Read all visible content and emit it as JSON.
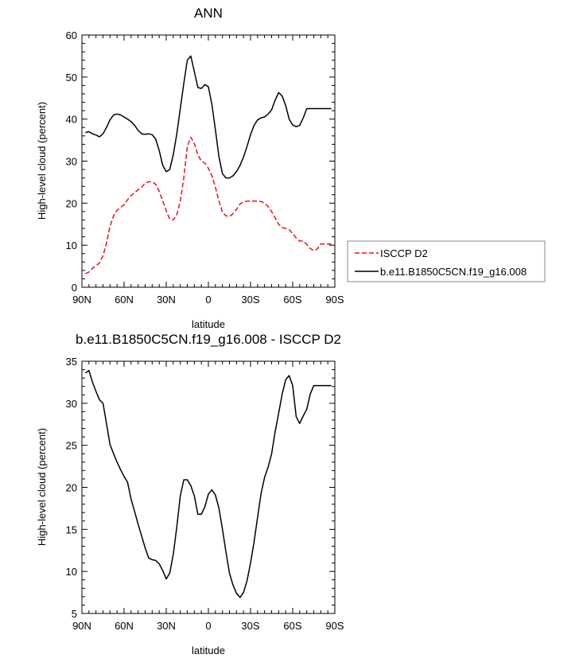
{
  "chart_data": [
    {
      "type": "line",
      "title": "ANN",
      "xlabel": "latitude",
      "ylabel": "High-level cloud (percent)",
      "xlim": [
        90,
        -90
      ],
      "ylim": [
        0,
        60
      ],
      "x_ticks": [
        90,
        60,
        30,
        0,
        -30,
        -60,
        -90
      ],
      "x_tick_labels": [
        "90N",
        "60N",
        "30N",
        "0",
        "30S",
        "60S",
        "90S"
      ],
      "y_ticks": [
        0,
        10,
        20,
        30,
        40,
        50,
        60
      ],
      "y_tick_labels": [
        "0",
        "10",
        "20",
        "30",
        "40",
        "50",
        "60"
      ],
      "legend_position": "right",
      "series": [
        {
          "name": "ISCCP D2",
          "color": "#e8101e",
          "style": "dashed",
          "x": [
            87.5,
            85,
            82.5,
            80,
            77.5,
            75,
            72.5,
            70,
            67.5,
            65,
            62.5,
            60,
            57.5,
            55,
            52.5,
            50,
            47.5,
            45,
            42.5,
            40,
            37.5,
            35,
            32.5,
            30,
            27.5,
            25,
            22.5,
            20,
            17.5,
            15,
            12.5,
            10,
            7.5,
            5,
            2.5,
            0,
            -2.5,
            -5,
            -7.5,
            -10,
            -12.5,
            -15,
            -17.5,
            -20,
            -22.5,
            -25,
            -27.5,
            -30,
            -32.5,
            -35,
            -37.5,
            -40,
            -42.5,
            -45,
            -47.5,
            -50,
            -52.5,
            -55,
            -57.5,
            -60,
            -62.5,
            -65,
            -67.5,
            -70,
            -72.5,
            -75,
            -77.5,
            -80,
            -82.5,
            -85,
            -87.5
          ],
          "values": [
            3.2,
            3.6,
            4.5,
            5.1,
            5.8,
            7.5,
            10.5,
            14.5,
            17,
            18.3,
            19,
            19.6,
            20.8,
            21.8,
            22.5,
            23.2,
            23.8,
            24.8,
            25.1,
            25.1,
            24.5,
            22.8,
            20.5,
            18.2,
            16.2,
            16,
            17.2,
            20.5,
            26,
            33.5,
            35.7,
            34.2,
            31.5,
            30,
            29.5,
            28.3,
            26.5,
            23.8,
            20.5,
            17.8,
            17,
            16.8,
            17.5,
            18.5,
            19.8,
            20.3,
            20.5,
            20.5,
            20.5,
            20.5,
            20.4,
            20,
            19.2,
            18,
            16.5,
            15,
            14.2,
            14,
            13.7,
            12.8,
            11.7,
            11,
            11,
            10.2,
            9.2,
            8.7,
            9.1,
            10.3,
            10.3,
            10.3,
            10.3
          ]
        },
        {
          "name": "b.e11.B1850C5CN.f19_g16.008",
          "color": "#000000",
          "style": "solid",
          "x": [
            87.5,
            85,
            82.5,
            80,
            77.5,
            75,
            72.5,
            70,
            67.5,
            65,
            62.5,
            60,
            57.5,
            55,
            52.5,
            50,
            47.5,
            45,
            42.5,
            40,
            37.5,
            35,
            32.5,
            30,
            27.5,
            25,
            22.5,
            20,
            17.5,
            15,
            12.5,
            10,
            7.5,
            5,
            2.5,
            0,
            -2.5,
            -5,
            -7.5,
            -10,
            -12.5,
            -15,
            -17.5,
            -20,
            -22.5,
            -25,
            -27.5,
            -30,
            -32.5,
            -35,
            -37.5,
            -40,
            -42.5,
            -45,
            -47.5,
            -50,
            -52.5,
            -55,
            -57.5,
            -60,
            -62.5,
            -65,
            -67.5,
            -70,
            -72.5,
            -75,
            -77.5,
            -80,
            -82.5,
            -85,
            -87.5
          ],
          "values": [
            36.8,
            37,
            36.5,
            36.2,
            35.8,
            36.5,
            38,
            39.8,
            41,
            41.2,
            41,
            40.5,
            40,
            39.4,
            38.5,
            37.3,
            36.5,
            36.4,
            36.5,
            36.3,
            35.2,
            32.5,
            29,
            27.5,
            28,
            31.5,
            36.5,
            42.5,
            48.5,
            54,
            55,
            51.3,
            47.5,
            47.3,
            48.2,
            47.7,
            43.5,
            37.5,
            31,
            27,
            26,
            26,
            26.5,
            27.5,
            29,
            31,
            33.5,
            36.3,
            38.5,
            39.8,
            40.3,
            40.5,
            41.2,
            42.2,
            44.5,
            46.3,
            45.5,
            43.2,
            40,
            38.6,
            38.2,
            38.5,
            40.3,
            42.5,
            42.5,
            42.5,
            42.5,
            42.5,
            42.5,
            42.5,
            42.5
          ]
        }
      ]
    },
    {
      "type": "line",
      "title": "b.e11.B1850C5CN.f19_g16.008 - ISCCP D2",
      "xlabel": "latitude",
      "ylabel": "High-level cloud (percent)",
      "xlim": [
        90,
        -90
      ],
      "ylim": [
        5,
        35
      ],
      "x_ticks": [
        90,
        60,
        30,
        0,
        -30,
        -60,
        -90
      ],
      "x_tick_labels": [
        "90N",
        "60N",
        "30N",
        "0",
        "30S",
        "60S",
        "90S"
      ],
      "y_ticks": [
        5,
        10,
        15,
        20,
        25,
        30,
        35
      ],
      "y_tick_labels": [
        "5",
        "10",
        "15",
        "20",
        "25",
        "30",
        "35"
      ],
      "series": [
        {
          "color": "#000000",
          "style": "solid",
          "x": [
            87.5,
            85,
            82.5,
            80,
            77.5,
            75,
            72.5,
            70,
            67.5,
            65,
            62.5,
            60,
            57.5,
            55,
            52.5,
            50,
            47.5,
            45,
            42.5,
            40,
            37.5,
            35,
            32.5,
            30,
            27.5,
            25,
            22.5,
            20,
            17.5,
            15,
            12.5,
            10,
            7.5,
            5,
            2.5,
            0,
            -2.5,
            -5,
            -7.5,
            -10,
            -12.5,
            -15,
            -17.5,
            -20,
            -22.5,
            -25,
            -27.5,
            -30,
            -32.5,
            -35,
            -37.5,
            -40,
            -42.5,
            -45,
            -47.5,
            -50,
            -52.5,
            -55,
            -57.5,
            -60,
            -62.5,
            -65,
            -67.5,
            -70,
            -72.5,
            -75,
            -77.5,
            -80,
            -82.5,
            -85,
            -87.5
          ],
          "values": [
            33.6,
            33.9,
            32.5,
            31.4,
            30.4,
            30,
            27.6,
            25.1,
            24,
            23,
            22.1,
            21.3,
            20.6,
            18.6,
            17.1,
            15.6,
            14.2,
            12.8,
            11.6,
            11.4,
            11.3,
            10.9,
            10.1,
            9.1,
            9.8,
            12,
            15.3,
            19,
            20.9,
            20.9,
            20.2,
            19,
            16.8,
            16.8,
            17.7,
            19.2,
            19.7,
            19.1,
            17.5,
            15,
            12.3,
            9.8,
            8.4,
            7.4,
            6.9,
            7.5,
            8.9,
            11,
            13.5,
            16.4,
            19.3,
            21.2,
            22.4,
            24,
            26.6,
            28.8,
            31.1,
            32.8,
            33.3,
            32.1,
            28.4,
            27.6,
            28.5,
            29.3,
            31.1,
            32.1,
            32.1,
            32.1,
            32.1,
            32.1,
            32.1
          ]
        }
      ]
    }
  ]
}
